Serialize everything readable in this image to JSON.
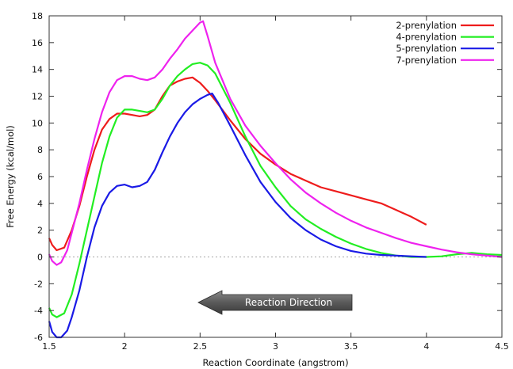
{
  "chart_data": {
    "type": "line",
    "title": "",
    "xlabel": "Reaction Coordinate (angstrom)",
    "ylabel": "Free Energy (kcal/mol)",
    "xlim": [
      1.5,
      4.5
    ],
    "ylim": [
      -6,
      18
    ],
    "x_ticks": [
      "1.5",
      "2",
      "2.5",
      "3",
      "3.5",
      "4",
      "4.5"
    ],
    "y_ticks": [
      "-6",
      "-4",
      "-2",
      "0",
      "2",
      "4",
      "6",
      "8",
      "10",
      "12",
      "14",
      "16",
      "18"
    ],
    "zero_reference_line": true,
    "legend_position": "top-right",
    "annotation": "Reaction Direction",
    "series": [
      {
        "name": "2-prenylation",
        "color": "#ee1c1c",
        "points": [
          [
            1.5,
            1.4
          ],
          [
            1.52,
            0.9
          ],
          [
            1.55,
            0.5
          ],
          [
            1.6,
            0.7
          ],
          [
            1.65,
            2.0
          ],
          [
            1.7,
            3.8
          ],
          [
            1.75,
            6.0
          ],
          [
            1.8,
            8.0
          ],
          [
            1.85,
            9.5
          ],
          [
            1.9,
            10.3
          ],
          [
            1.95,
            10.7
          ],
          [
            2.0,
            10.7
          ],
          [
            2.05,
            10.6
          ],
          [
            2.1,
            10.5
          ],
          [
            2.15,
            10.6
          ],
          [
            2.2,
            11.0
          ],
          [
            2.25,
            12.0
          ],
          [
            2.3,
            12.8
          ],
          [
            2.35,
            13.1
          ],
          [
            2.4,
            13.3
          ],
          [
            2.45,
            13.4
          ],
          [
            2.5,
            13.0
          ],
          [
            2.55,
            12.4
          ],
          [
            2.6,
            11.7
          ],
          [
            2.7,
            10.2
          ],
          [
            2.8,
            8.8
          ],
          [
            2.9,
            7.7
          ],
          [
            3.0,
            6.9
          ],
          [
            3.1,
            6.2
          ],
          [
            3.2,
            5.7
          ],
          [
            3.3,
            5.2
          ],
          [
            3.4,
            4.9
          ],
          [
            3.5,
            4.6
          ],
          [
            3.6,
            4.3
          ],
          [
            3.7,
            4.0
          ],
          [
            3.8,
            3.5
          ],
          [
            3.9,
            3.0
          ],
          [
            4.0,
            2.4
          ]
        ]
      },
      {
        "name": "4-prenylation",
        "color": "#22ee22",
        "points": [
          [
            1.5,
            -3.8
          ],
          [
            1.52,
            -4.3
          ],
          [
            1.55,
            -4.5
          ],
          [
            1.6,
            -4.2
          ],
          [
            1.65,
            -2.8
          ],
          [
            1.7,
            -0.5
          ],
          [
            1.75,
            2.0
          ],
          [
            1.8,
            4.5
          ],
          [
            1.85,
            7.0
          ],
          [
            1.9,
            9.0
          ],
          [
            1.95,
            10.4
          ],
          [
            2.0,
            11.0
          ],
          [
            2.05,
            11.0
          ],
          [
            2.1,
            10.9
          ],
          [
            2.15,
            10.8
          ],
          [
            2.2,
            11.0
          ],
          [
            2.25,
            11.8
          ],
          [
            2.3,
            12.8
          ],
          [
            2.35,
            13.5
          ],
          [
            2.4,
            14.0
          ],
          [
            2.45,
            14.4
          ],
          [
            2.5,
            14.5
          ],
          [
            2.55,
            14.3
          ],
          [
            2.6,
            13.7
          ],
          [
            2.7,
            11.5
          ],
          [
            2.8,
            9.0
          ],
          [
            2.9,
            6.8
          ],
          [
            3.0,
            5.2
          ],
          [
            3.1,
            3.8
          ],
          [
            3.2,
            2.8
          ],
          [
            3.3,
            2.1
          ],
          [
            3.4,
            1.5
          ],
          [
            3.5,
            1.0
          ],
          [
            3.6,
            0.6
          ],
          [
            3.7,
            0.3
          ],
          [
            3.8,
            0.1
          ],
          [
            3.9,
            0.0
          ],
          [
            4.0,
            0.0
          ],
          [
            4.1,
            0.05
          ],
          [
            4.2,
            0.2
          ],
          [
            4.3,
            0.3
          ],
          [
            4.4,
            0.2
          ],
          [
            4.5,
            0.15
          ]
        ]
      },
      {
        "name": "5-prenylation",
        "color": "#1a1ae6",
        "points": [
          [
            1.5,
            -4.8
          ],
          [
            1.52,
            -5.6
          ],
          [
            1.55,
            -6.0
          ],
          [
            1.58,
            -6.0
          ],
          [
            1.62,
            -5.5
          ],
          [
            1.65,
            -4.5
          ],
          [
            1.7,
            -2.5
          ],
          [
            1.75,
            0.0
          ],
          [
            1.8,
            2.2
          ],
          [
            1.85,
            3.8
          ],
          [
            1.9,
            4.8
          ],
          [
            1.95,
            5.3
          ],
          [
            2.0,
            5.4
          ],
          [
            2.05,
            5.2
          ],
          [
            2.1,
            5.3
          ],
          [
            2.15,
            5.6
          ],
          [
            2.2,
            6.5
          ],
          [
            2.25,
            7.8
          ],
          [
            2.3,
            9.0
          ],
          [
            2.35,
            10.0
          ],
          [
            2.4,
            10.8
          ],
          [
            2.45,
            11.4
          ],
          [
            2.5,
            11.8
          ],
          [
            2.55,
            12.1
          ],
          [
            2.58,
            12.2
          ],
          [
            2.62,
            11.5
          ],
          [
            2.7,
            9.8
          ],
          [
            2.8,
            7.6
          ],
          [
            2.9,
            5.6
          ],
          [
            3.0,
            4.1
          ],
          [
            3.1,
            2.9
          ],
          [
            3.2,
            2.0
          ],
          [
            3.3,
            1.3
          ],
          [
            3.4,
            0.8
          ],
          [
            3.5,
            0.45
          ],
          [
            3.6,
            0.25
          ],
          [
            3.7,
            0.15
          ],
          [
            3.8,
            0.1
          ],
          [
            3.9,
            0.05
          ],
          [
            4.0,
            0.0
          ]
        ]
      },
      {
        "name": "7-prenylation",
        "color": "#ee22ee",
        "points": [
          [
            1.5,
            0.2
          ],
          [
            1.52,
            -0.3
          ],
          [
            1.55,
            -0.6
          ],
          [
            1.58,
            -0.4
          ],
          [
            1.62,
            0.5
          ],
          [
            1.65,
            1.8
          ],
          [
            1.7,
            4.0
          ],
          [
            1.75,
            6.5
          ],
          [
            1.8,
            8.8
          ],
          [
            1.85,
            10.8
          ],
          [
            1.9,
            12.3
          ],
          [
            1.95,
            13.2
          ],
          [
            2.0,
            13.5
          ],
          [
            2.05,
            13.5
          ],
          [
            2.1,
            13.3
          ],
          [
            2.15,
            13.2
          ],
          [
            2.2,
            13.4
          ],
          [
            2.25,
            14.0
          ],
          [
            2.3,
            14.8
          ],
          [
            2.35,
            15.5
          ],
          [
            2.4,
            16.3
          ],
          [
            2.45,
            16.9
          ],
          [
            2.5,
            17.5
          ],
          [
            2.52,
            17.6
          ],
          [
            2.55,
            16.5
          ],
          [
            2.6,
            14.5
          ],
          [
            2.7,
            11.8
          ],
          [
            2.8,
            9.8
          ],
          [
            2.9,
            8.3
          ],
          [
            3.0,
            7.0
          ],
          [
            3.1,
            5.8
          ],
          [
            3.2,
            4.8
          ],
          [
            3.3,
            4.0
          ],
          [
            3.4,
            3.3
          ],
          [
            3.5,
            2.7
          ],
          [
            3.6,
            2.2
          ],
          [
            3.7,
            1.8
          ],
          [
            3.8,
            1.4
          ],
          [
            3.9,
            1.05
          ],
          [
            4.0,
            0.8
          ],
          [
            4.1,
            0.55
          ],
          [
            4.2,
            0.35
          ],
          [
            4.3,
            0.2
          ],
          [
            4.4,
            0.1
          ],
          [
            4.5,
            0.0
          ]
        ]
      }
    ]
  }
}
